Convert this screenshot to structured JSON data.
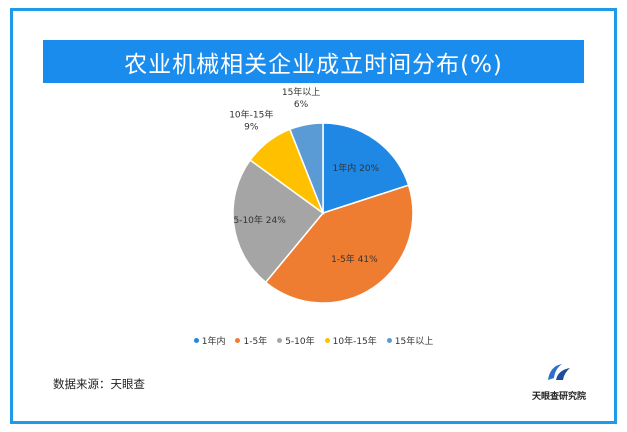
{
  "title": "农业机械相关企业成立时间分布(%)",
  "source": "数据来源：天眼查",
  "logo_text": "天眼查研究院",
  "chart_data": {
    "type": "pie",
    "title": "农业机械相关企业成立时间分布(%)",
    "slices": [
      {
        "label": "1年内",
        "value": 20,
        "color": "#1f88e5",
        "data_label": "1年内 20%"
      },
      {
        "label": "1-5年",
        "value": 41,
        "color": "#ef7d31",
        "data_label": "1-5年 41%"
      },
      {
        "label": "5-10年",
        "value": 24,
        "color": "#a5a5a5",
        "data_label": "5-10年 24%"
      },
      {
        "label": "10年-15年",
        "value": 9,
        "color": "#ffc000",
        "data_label": "10年-15年\n9%"
      },
      {
        "label": "15年以上",
        "value": 6,
        "color": "#5b9bd5",
        "data_label": "15年以上\n6%"
      }
    ],
    "legend": [
      "1年内",
      "1-5年",
      "5-10年",
      "10年-15年",
      "15年以上"
    ],
    "legend_position": "bottom"
  }
}
